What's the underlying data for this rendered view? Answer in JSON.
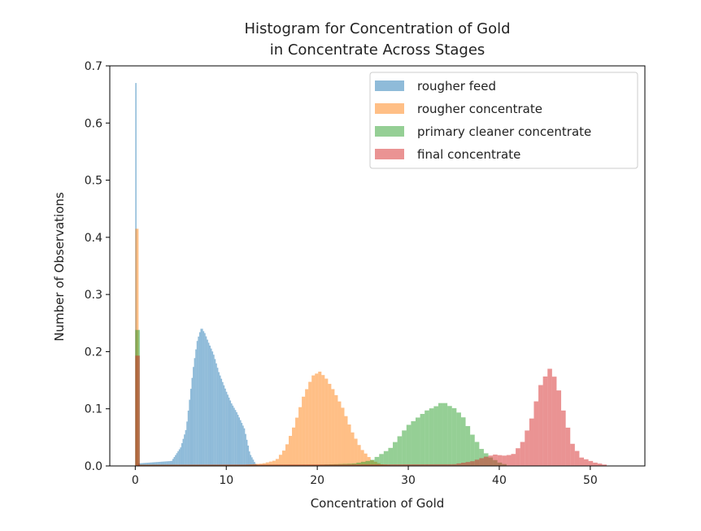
{
  "chart_data": {
    "type": "histogram",
    "title_line1": "Histogram for Concentration of Gold",
    "title_line2": "in Concentrate Across Stages",
    "xlabel": "Concentration of Gold",
    "ylabel": "Number of Observations",
    "xlim": [
      -2.8,
      56.0
    ],
    "ylim": [
      0,
      0.7
    ],
    "xticks": [
      0,
      10,
      20,
      30,
      40,
      50
    ],
    "yticks": [
      0.0,
      0.1,
      0.2,
      0.3,
      0.4,
      0.5,
      0.6,
      0.7
    ],
    "xtick_labels": [
      "0",
      "10",
      "20",
      "30",
      "40",
      "50"
    ],
    "ytick_labels": [
      "0.0",
      "0.1",
      "0.2",
      "0.3",
      "0.4",
      "0.5",
      "0.6",
      "0.7"
    ],
    "grid": false,
    "legend_position": "top-right",
    "alpha": 0.5,
    "series": [
      {
        "name": "rougher feed",
        "color": "#1f77b4",
        "bin_width": 0.14,
        "spike": {
          "x": 0,
          "value": 0.67
        },
        "mode": 7.3,
        "peak": 0.24,
        "profile": [
          [
            0.3,
            0.004
          ],
          [
            4.0,
            0.008
          ],
          [
            5.0,
            0.03
          ],
          [
            5.6,
            0.06
          ],
          [
            6.0,
            0.11
          ],
          [
            6.4,
            0.16
          ],
          [
            6.8,
            0.2
          ],
          [
            7.2,
            0.22
          ],
          [
            7.6,
            0.215
          ],
          [
            8.0,
            0.2
          ],
          [
            8.6,
            0.18
          ],
          [
            9.2,
            0.15
          ],
          [
            10.0,
            0.12
          ],
          [
            10.6,
            0.1
          ],
          [
            11.2,
            0.085
          ],
          [
            12.0,
            0.06
          ],
          [
            12.6,
            0.02
          ],
          [
            13.2,
            0.004
          ],
          [
            13.5,
            0.0
          ]
        ]
      },
      {
        "name": "rougher concentrate",
        "color": "#ff7f0e",
        "bin_width": 0.36,
        "spike": {
          "x": 0,
          "value": 0.415
        },
        "mode": 20.3,
        "peak": 0.165,
        "profile": [
          [
            0.3,
            0.002
          ],
          [
            12.0,
            0.002
          ],
          [
            14.0,
            0.004
          ],
          [
            15.5,
            0.01
          ],
          [
            16.5,
            0.03
          ],
          [
            17.5,
            0.07
          ],
          [
            18.5,
            0.12
          ],
          [
            19.5,
            0.155
          ],
          [
            20.3,
            0.162
          ],
          [
            21.0,
            0.15
          ],
          [
            21.8,
            0.13
          ],
          [
            22.8,
            0.1
          ],
          [
            23.8,
            0.06
          ],
          [
            24.8,
            0.03
          ],
          [
            26.0,
            0.01
          ],
          [
            27.0,
            0.003
          ],
          [
            28.0,
            0.001
          ]
        ]
      },
      {
        "name": "primary cleaner concentrate",
        "color": "#2ca02c",
        "bin_width": 0.5,
        "spike": {
          "x": 0,
          "value": 0.238
        },
        "mode": 33.8,
        "peak": 0.11,
        "profile": [
          [
            0.3,
            0.002
          ],
          [
            20.0,
            0.002
          ],
          [
            24.0,
            0.004
          ],
          [
            26.0,
            0.01
          ],
          [
            28.0,
            0.03
          ],
          [
            30.0,
            0.07
          ],
          [
            32.0,
            0.095
          ],
          [
            33.8,
            0.108
          ],
          [
            35.0,
            0.1
          ],
          [
            36.0,
            0.085
          ],
          [
            37.0,
            0.055
          ],
          [
            38.0,
            0.03
          ],
          [
            39.0,
            0.015
          ],
          [
            40.0,
            0.006
          ],
          [
            41.0,
            0.001
          ]
        ]
      },
      {
        "name": "final concentrate",
        "color": "#d62728",
        "bin_width": 0.5,
        "spike": {
          "x": 0,
          "value": 0.193
        },
        "mode": 45.5,
        "peak": 0.17,
        "profile": [
          [
            0.3,
            0.002
          ],
          [
            35.0,
            0.003
          ],
          [
            37.0,
            0.008
          ],
          [
            38.5,
            0.016
          ],
          [
            39.5,
            0.02
          ],
          [
            40.5,
            0.018
          ],
          [
            41.5,
            0.02
          ],
          [
            42.5,
            0.04
          ],
          [
            43.5,
            0.08
          ],
          [
            44.5,
            0.14
          ],
          [
            45.5,
            0.17
          ],
          [
            46.3,
            0.15
          ],
          [
            47.0,
            0.1
          ],
          [
            48.0,
            0.04
          ],
          [
            49.0,
            0.015
          ],
          [
            50.5,
            0.006
          ],
          [
            52.0,
            0.001
          ]
        ]
      }
    ]
  }
}
